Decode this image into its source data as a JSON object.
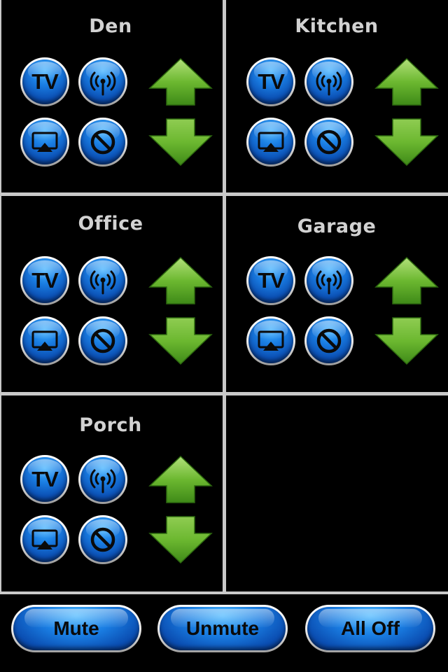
{
  "zones": [
    {
      "name": "Den",
      "tv_label": "TV"
    },
    {
      "name": "Kitchen",
      "tv_label": "TV"
    },
    {
      "name": "Office",
      "tv_label": "TV"
    },
    {
      "name": "Garage",
      "tv_label": "TV"
    },
    {
      "name": "Porch",
      "tv_label": "TV"
    }
  ],
  "bottom_bar": {
    "mute_label": "Mute",
    "unmute_label": "Unmute",
    "all_off_label": "All Off"
  },
  "colors": {
    "background": "#000000",
    "grid_line": "#c9c9c9",
    "zone_title": "#d2d2d2",
    "button_blue": "#1a7ee3",
    "arrow_green": "#6cb830"
  }
}
